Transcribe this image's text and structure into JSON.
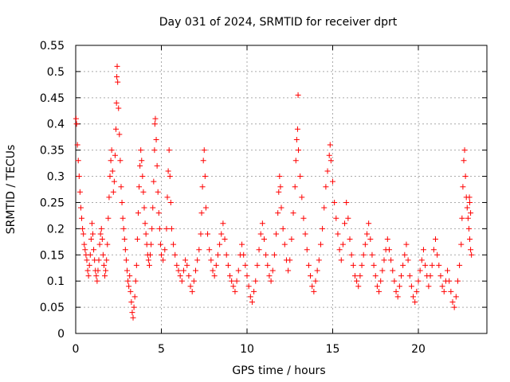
{
  "chart_data": {
    "type": "scatter",
    "title": "Day 031 of 2024, SRMTID for receiver dprt",
    "xlabel": "GPS time / hours",
    "ylabel": "SRMTID / TECUs",
    "xlim": [
      0,
      24
    ],
    "ylim": [
      0,
      0.55
    ],
    "xticks": [
      0,
      5,
      10,
      15,
      20
    ],
    "xtick_labels": [
      "0",
      "5",
      "10",
      "15",
      "20"
    ],
    "yticks": [
      0,
      0.05,
      0.1,
      0.15,
      0.2,
      0.25,
      0.3,
      0.35,
      0.4,
      0.45,
      0.5,
      0.55
    ],
    "ytick_labels": [
      "0",
      "0.05",
      "0.1",
      "0.15",
      "0.2",
      "0.25",
      "0.3",
      "0.35",
      "0.4",
      "0.45",
      "0.5",
      "0.55"
    ],
    "grid": true,
    "marker": "+",
    "color": "#ff0000",
    "series": [
      {
        "name": "SRMTID",
        "points": [
          [
            0.02,
            0.41
          ],
          [
            0.05,
            0.4
          ],
          [
            0.1,
            0.36
          ],
          [
            0.15,
            0.33
          ],
          [
            0.2,
            0.3
          ],
          [
            0.25,
            0.27
          ],
          [
            0.3,
            0.24
          ],
          [
            0.35,
            0.22
          ],
          [
            0.4,
            0.2
          ],
          [
            0.45,
            0.19
          ],
          [
            0.5,
            0.17
          ],
          [
            0.55,
            0.16
          ],
          [
            0.6,
            0.15
          ],
          [
            0.65,
            0.14
          ],
          [
            0.7,
            0.12
          ],
          [
            0.75,
            0.11
          ],
          [
            0.8,
            0.13
          ],
          [
            0.85,
            0.15
          ],
          [
            0.9,
            0.18
          ],
          [
            0.95,
            0.21
          ],
          [
            1.0,
            0.19
          ],
          [
            1.05,
            0.16
          ],
          [
            1.1,
            0.14
          ],
          [
            1.15,
            0.12
          ],
          [
            1.2,
            0.11
          ],
          [
            1.25,
            0.1
          ],
          [
            1.3,
            0.12
          ],
          [
            1.35,
            0.14
          ],
          [
            1.4,
            0.17
          ],
          [
            1.45,
            0.19
          ],
          [
            1.5,
            0.2
          ],
          [
            1.55,
            0.18
          ],
          [
            1.6,
            0.15
          ],
          [
            1.65,
            0.13
          ],
          [
            1.7,
            0.11
          ],
          [
            1.75,
            0.12
          ],
          [
            1.8,
            0.14
          ],
          [
            1.85,
            0.17
          ],
          [
            1.9,
            0.22
          ],
          [
            1.95,
            0.26
          ],
          [
            2.0,
            0.3
          ],
          [
            2.05,
            0.33
          ],
          [
            2.1,
            0.35
          ],
          [
            2.15,
            0.31
          ],
          [
            2.2,
            0.27
          ],
          [
            2.25,
            0.29
          ],
          [
            2.3,
            0.34
          ],
          [
            2.35,
            0.39
          ],
          [
            2.38,
            0.44
          ],
          [
            2.4,
            0.49
          ],
          [
            2.42,
            0.51
          ],
          [
            2.45,
            0.48
          ],
          [
            2.5,
            0.43
          ],
          [
            2.55,
            0.38
          ],
          [
            2.6,
            0.33
          ],
          [
            2.65,
            0.28
          ],
          [
            2.7,
            0.25
          ],
          [
            2.75,
            0.22
          ],
          [
            2.8,
            0.2
          ],
          [
            2.85,
            0.18
          ],
          [
            2.9,
            0.16
          ],
          [
            2.95,
            0.14
          ],
          [
            3.0,
            0.12
          ],
          [
            3.05,
            0.1
          ],
          [
            3.1,
            0.09
          ],
          [
            3.15,
            0.11
          ],
          [
            3.2,
            0.08
          ],
          [
            3.25,
            0.06
          ],
          [
            3.3,
            0.04
          ],
          [
            3.35,
            0.03
          ],
          [
            3.4,
            0.05
          ],
          [
            3.45,
            0.07
          ],
          [
            3.5,
            0.1
          ],
          [
            3.55,
            0.13
          ],
          [
            3.6,
            0.18
          ],
          [
            3.65,
            0.23
          ],
          [
            3.7,
            0.28
          ],
          [
            3.75,
            0.32
          ],
          [
            3.8,
            0.35
          ],
          [
            3.85,
            0.33
          ],
          [
            3.9,
            0.3
          ],
          [
            3.95,
            0.27
          ],
          [
            4.0,
            0.24
          ],
          [
            4.05,
            0.21
          ],
          [
            4.1,
            0.19
          ],
          [
            4.15,
            0.17
          ],
          [
            4.2,
            0.15
          ],
          [
            4.25,
            0.14
          ],
          [
            4.3,
            0.13
          ],
          [
            4.35,
            0.15
          ],
          [
            4.4,
            0.17
          ],
          [
            4.45,
            0.2
          ],
          [
            4.5,
            0.24
          ],
          [
            4.55,
            0.29
          ],
          [
            4.6,
            0.35
          ],
          [
            4.62,
            0.4
          ],
          [
            4.65,
            0.41
          ],
          [
            4.7,
            0.37
          ],
          [
            4.75,
            0.32
          ],
          [
            4.8,
            0.27
          ],
          [
            4.85,
            0.23
          ],
          [
            4.9,
            0.2
          ],
          [
            4.95,
            0.17
          ],
          [
            5.0,
            0.15
          ],
          [
            5.1,
            0.14
          ],
          [
            5.2,
            0.16
          ],
          [
            5.3,
            0.2
          ],
          [
            5.35,
            0.26
          ],
          [
            5.4,
            0.31
          ],
          [
            5.45,
            0.35
          ],
          [
            5.5,
            0.3
          ],
          [
            5.55,
            0.25
          ],
          [
            5.6,
            0.2
          ],
          [
            5.7,
            0.17
          ],
          [
            5.8,
            0.15
          ],
          [
            5.9,
            0.13
          ],
          [
            6.0,
            0.12
          ],
          [
            6.1,
            0.11
          ],
          [
            6.2,
            0.1
          ],
          [
            6.3,
            0.12
          ],
          [
            6.4,
            0.14
          ],
          [
            6.5,
            0.13
          ],
          [
            6.6,
            0.11
          ],
          [
            6.7,
            0.09
          ],
          [
            6.8,
            0.08
          ],
          [
            6.9,
            0.1
          ],
          [
            7.0,
            0.12
          ],
          [
            7.1,
            0.14
          ],
          [
            7.2,
            0.16
          ],
          [
            7.3,
            0.19
          ],
          [
            7.35,
            0.23
          ],
          [
            7.4,
            0.28
          ],
          [
            7.45,
            0.33
          ],
          [
            7.5,
            0.35
          ],
          [
            7.55,
            0.3
          ],
          [
            7.6,
            0.24
          ],
          [
            7.7,
            0.19
          ],
          [
            7.8,
            0.16
          ],
          [
            7.9,
            0.14
          ],
          [
            8.0,
            0.12
          ],
          [
            8.1,
            0.11
          ],
          [
            8.2,
            0.13
          ],
          [
            8.3,
            0.15
          ],
          [
            8.4,
            0.17
          ],
          [
            8.5,
            0.19
          ],
          [
            8.6,
            0.21
          ],
          [
            8.7,
            0.18
          ],
          [
            8.8,
            0.15
          ],
          [
            8.9,
            0.13
          ],
          [
            9.0,
            0.11
          ],
          [
            9.1,
            0.1
          ],
          [
            9.2,
            0.09
          ],
          [
            9.3,
            0.08
          ],
          [
            9.4,
            0.1
          ],
          [
            9.5,
            0.12
          ],
          [
            9.6,
            0.15
          ],
          [
            9.7,
            0.17
          ],
          [
            9.8,
            0.15
          ],
          [
            9.9,
            0.13
          ],
          [
            10.0,
            0.11
          ],
          [
            10.1,
            0.09
          ],
          [
            10.2,
            0.07
          ],
          [
            10.3,
            0.06
          ],
          [
            10.4,
            0.08
          ],
          [
            10.5,
            0.1
          ],
          [
            10.6,
            0.13
          ],
          [
            10.7,
            0.16
          ],
          [
            10.8,
            0.19
          ],
          [
            10.9,
            0.21
          ],
          [
            11.0,
            0.18
          ],
          [
            11.1,
            0.15
          ],
          [
            11.2,
            0.13
          ],
          [
            11.3,
            0.11
          ],
          [
            11.4,
            0.1
          ],
          [
            11.5,
            0.12
          ],
          [
            11.6,
            0.15
          ],
          [
            11.7,
            0.19
          ],
          [
            11.8,
            0.23
          ],
          [
            11.85,
            0.27
          ],
          [
            11.9,
            0.3
          ],
          [
            11.95,
            0.28
          ],
          [
            12.0,
            0.24
          ],
          [
            12.1,
            0.2
          ],
          [
            12.2,
            0.17
          ],
          [
            12.3,
            0.14
          ],
          [
            12.4,
            0.12
          ],
          [
            12.5,
            0.14
          ],
          [
            12.6,
            0.18
          ],
          [
            12.7,
            0.23
          ],
          [
            12.8,
            0.28
          ],
          [
            12.85,
            0.33
          ],
          [
            12.9,
            0.37
          ],
          [
            12.95,
            0.39
          ],
          [
            13.0,
            0.35
          ],
          [
            12.98,
            0.455
          ],
          [
            13.1,
            0.3
          ],
          [
            13.2,
            0.26
          ],
          [
            13.3,
            0.22
          ],
          [
            13.4,
            0.19
          ],
          [
            13.5,
            0.16
          ],
          [
            13.6,
            0.13
          ],
          [
            13.7,
            0.11
          ],
          [
            13.8,
            0.09
          ],
          [
            13.9,
            0.08
          ],
          [
            14.0,
            0.1
          ],
          [
            14.1,
            0.12
          ],
          [
            14.2,
            0.14
          ],
          [
            14.3,
            0.17
          ],
          [
            14.4,
            0.2
          ],
          [
            14.5,
            0.24
          ],
          [
            14.6,
            0.28
          ],
          [
            14.7,
            0.31
          ],
          [
            14.8,
            0.34
          ],
          [
            14.85,
            0.36
          ],
          [
            14.9,
            0.33
          ],
          [
            15.0,
            0.29
          ],
          [
            15.1,
            0.25
          ],
          [
            15.2,
            0.22
          ],
          [
            15.3,
            0.19
          ],
          [
            15.4,
            0.16
          ],
          [
            15.5,
            0.14
          ],
          [
            15.6,
            0.17
          ],
          [
            15.7,
            0.21
          ],
          [
            15.8,
            0.25
          ],
          [
            15.9,
            0.22
          ],
          [
            16.0,
            0.18
          ],
          [
            16.1,
            0.15
          ],
          [
            16.2,
            0.13
          ],
          [
            16.3,
            0.11
          ],
          [
            16.4,
            0.1
          ],
          [
            16.5,
            0.09
          ],
          [
            16.6,
            0.11
          ],
          [
            16.7,
            0.13
          ],
          [
            16.8,
            0.15
          ],
          [
            16.9,
            0.17
          ],
          [
            17.0,
            0.19
          ],
          [
            17.1,
            0.21
          ],
          [
            17.2,
            0.18
          ],
          [
            17.3,
            0.15
          ],
          [
            17.4,
            0.13
          ],
          [
            17.5,
            0.11
          ],
          [
            17.6,
            0.09
          ],
          [
            17.7,
            0.08
          ],
          [
            17.8,
            0.1
          ],
          [
            17.9,
            0.12
          ],
          [
            18.0,
            0.14
          ],
          [
            18.1,
            0.16
          ],
          [
            18.2,
            0.18
          ],
          [
            18.3,
            0.16
          ],
          [
            18.4,
            0.14
          ],
          [
            18.5,
            0.12
          ],
          [
            18.6,
            0.1
          ],
          [
            18.7,
            0.08
          ],
          [
            18.8,
            0.07
          ],
          [
            18.9,
            0.09
          ],
          [
            19.0,
            0.11
          ],
          [
            19.1,
            0.13
          ],
          [
            19.2,
            0.15
          ],
          [
            19.3,
            0.17
          ],
          [
            19.4,
            0.14
          ],
          [
            19.5,
            0.11
          ],
          [
            19.6,
            0.09
          ],
          [
            19.7,
            0.07
          ],
          [
            19.8,
            0.06
          ],
          [
            19.9,
            0.08
          ],
          [
            20.0,
            0.1
          ],
          [
            20.1,
            0.12
          ],
          [
            20.2,
            0.14
          ],
          [
            20.3,
            0.16
          ],
          [
            20.4,
            0.13
          ],
          [
            20.5,
            0.11
          ],
          [
            20.6,
            0.09
          ],
          [
            20.7,
            0.11
          ],
          [
            20.8,
            0.13
          ],
          [
            20.9,
            0.16
          ],
          [
            21.0,
            0.18
          ],
          [
            21.1,
            0.15
          ],
          [
            21.2,
            0.13
          ],
          [
            21.3,
            0.11
          ],
          [
            21.4,
            0.09
          ],
          [
            21.5,
            0.08
          ],
          [
            21.6,
            0.1
          ],
          [
            21.7,
            0.12
          ],
          [
            21.8,
            0.1
          ],
          [
            21.9,
            0.08
          ],
          [
            22.0,
            0.06
          ],
          [
            22.1,
            0.05
          ],
          [
            22.2,
            0.07
          ],
          [
            22.3,
            0.1
          ],
          [
            22.4,
            0.13
          ],
          [
            22.5,
            0.17
          ],
          [
            22.55,
            0.22
          ],
          [
            22.6,
            0.28
          ],
          [
            22.65,
            0.33
          ],
          [
            22.7,
            0.35
          ],
          [
            22.75,
            0.3
          ],
          [
            22.8,
            0.26
          ],
          [
            22.85,
            0.24
          ],
          [
            22.9,
            0.22
          ],
          [
            22.95,
            0.2
          ],
          [
            23.0,
            0.18
          ],
          [
            22.98,
            0.26
          ],
          [
            23.0,
            0.25
          ],
          [
            23.05,
            0.23
          ],
          [
            23.05,
            0.16
          ],
          [
            23.1,
            0.15
          ]
        ]
      }
    ]
  }
}
